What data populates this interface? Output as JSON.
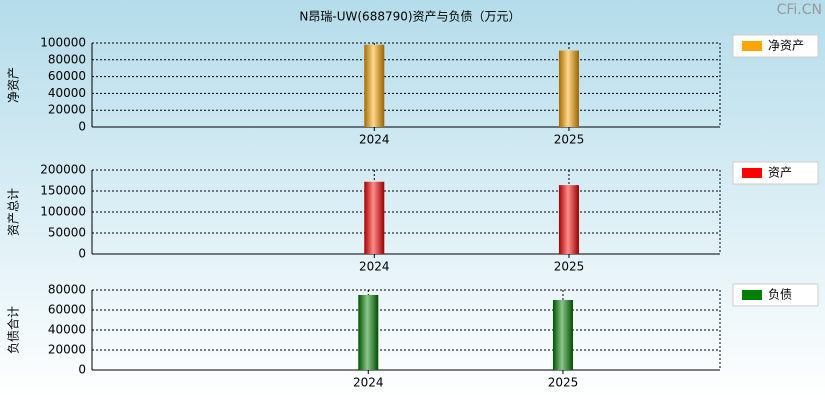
{
  "title": "N昂瑞-UW(688790)资产与负债（万元）",
  "watermark": "CFi.CN",
  "chart_data": [
    {
      "type": "bar",
      "ylabel": "净资产",
      "categories": [
        "2024",
        "2025"
      ],
      "series": [
        {
          "name": "净资产",
          "color": "#ffa500",
          "values": [
            98000,
            91000
          ]
        }
      ],
      "ylim": [
        0,
        100000
      ],
      "yticks": [
        0,
        20000,
        40000,
        60000,
        80000,
        100000
      ],
      "grid": true
    },
    {
      "type": "bar",
      "ylabel": "资产总计",
      "categories": [
        "2024",
        "2025"
      ],
      "series": [
        {
          "name": "资产",
          "color": "#ff0000",
          "values": [
            172000,
            164000
          ]
        }
      ],
      "ylim": [
        0,
        200000
      ],
      "yticks": [
        0,
        50000,
        100000,
        150000,
        200000
      ],
      "grid": true
    },
    {
      "type": "bar",
      "ylabel": "负债合计",
      "categories": [
        "2024",
        "2025"
      ],
      "series": [
        {
          "name": "负债",
          "color": "#008000",
          "values": [
            75000,
            70000
          ]
        }
      ],
      "ylim": [
        0,
        80000
      ],
      "yticks": [
        0,
        20000,
        40000,
        60000,
        80000
      ],
      "grid": true
    }
  ]
}
